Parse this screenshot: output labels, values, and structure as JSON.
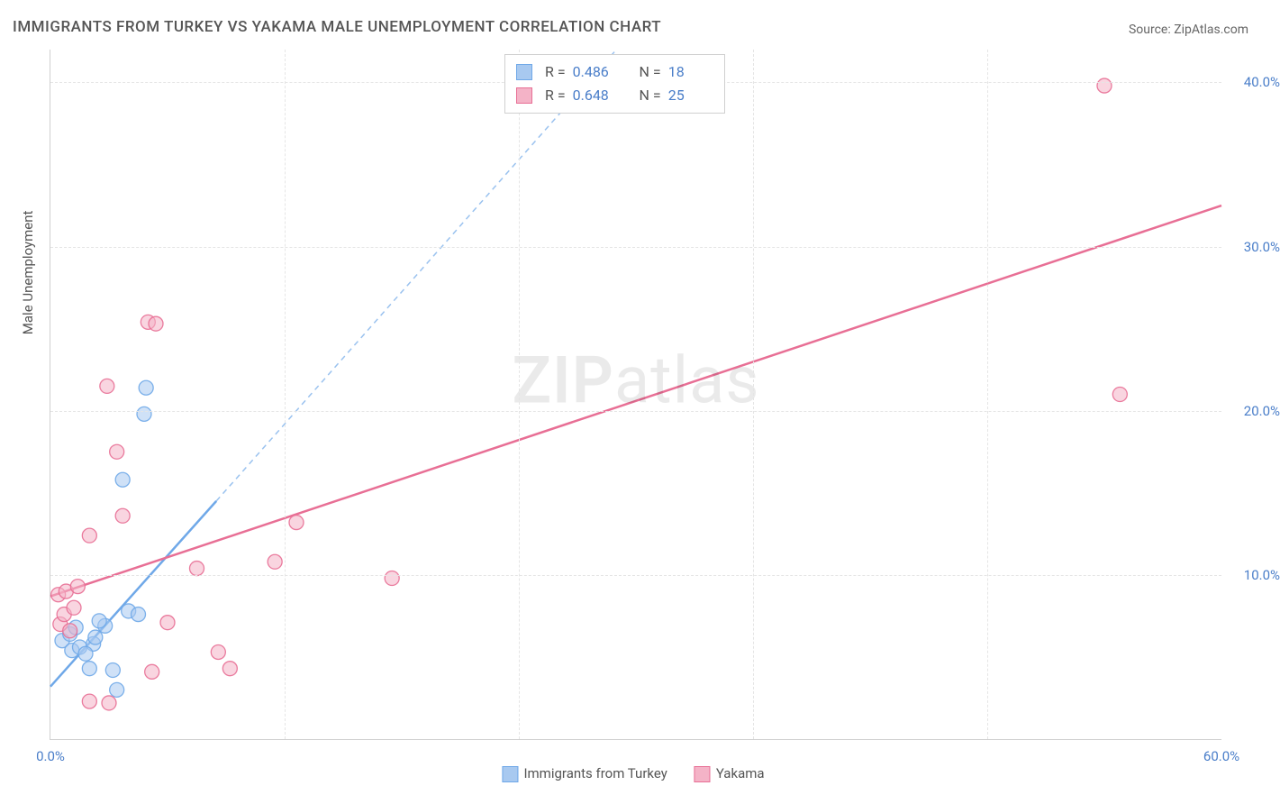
{
  "title": "IMMIGRANTS FROM TURKEY VS YAKAMA MALE UNEMPLOYMENT CORRELATION CHART",
  "source": "Source: ZipAtlas.com",
  "y_axis_label": "Male Unemployment",
  "watermark_bold": "ZIP",
  "watermark_rest": "atlas",
  "chart": {
    "type": "scatter",
    "xlim": [
      0,
      60
    ],
    "ylim": [
      0,
      42
    ],
    "x_ticks": [
      0,
      60
    ],
    "x_tick_labels": [
      "0.0%",
      "60.0%"
    ],
    "y_ticks": [
      10,
      20,
      30,
      40
    ],
    "y_tick_labels": [
      "10.0%",
      "20.0%",
      "30.0%",
      "40.0%"
    ],
    "v_grid_positions": [
      12,
      24,
      36,
      48
    ],
    "background_color": "#ffffff",
    "grid_color": "#e5e5e5",
    "axis_color": "#d0d0d0",
    "tick_label_color": "#4a7ec9",
    "marker_radius": 8,
    "marker_opacity": 0.55,
    "marker_stroke_opacity": 0.9,
    "series": [
      {
        "name": "Immigrants from Turkey",
        "key": "turkey",
        "color": "#6fa8e8",
        "fill": "#a8c9f0",
        "R": "0.486",
        "N": "18",
        "trend": {
          "x1": 0,
          "y1": 3.2,
          "x2": 8.5,
          "y2": 14.5,
          "dash_x2": 29,
          "dash_y2": 42
        },
        "points": [
          [
            0.6,
            6.0
          ],
          [
            1.0,
            6.4
          ],
          [
            1.1,
            5.4
          ],
          [
            1.3,
            6.8
          ],
          [
            1.5,
            5.6
          ],
          [
            2.0,
            4.3
          ],
          [
            2.2,
            5.8
          ],
          [
            2.8,
            6.9
          ],
          [
            2.3,
            6.2
          ],
          [
            3.2,
            4.2
          ],
          [
            3.4,
            3.0
          ],
          [
            4.0,
            7.8
          ],
          [
            4.5,
            7.6
          ],
          [
            2.5,
            7.2
          ],
          [
            3.7,
            15.8
          ],
          [
            4.9,
            21.4
          ],
          [
            4.8,
            19.8
          ],
          [
            1.8,
            5.2
          ]
        ]
      },
      {
        "name": "Yakama",
        "key": "yakama",
        "color": "#e86f95",
        "fill": "#f4b3c7",
        "R": "0.648",
        "N": "25",
        "trend": {
          "x1": 0,
          "y1": 8.7,
          "x2": 60,
          "y2": 32.5
        },
        "points": [
          [
            0.4,
            8.8
          ],
          [
            0.5,
            7.0
          ],
          [
            0.8,
            9.0
          ],
          [
            0.7,
            7.6
          ],
          [
            1.0,
            6.6
          ],
          [
            1.2,
            8.0
          ],
          [
            1.4,
            9.3
          ],
          [
            2.0,
            2.3
          ],
          [
            3.0,
            2.2
          ],
          [
            2.0,
            12.4
          ],
          [
            2.9,
            21.5
          ],
          [
            3.4,
            17.5
          ],
          [
            3.7,
            13.6
          ],
          [
            5.0,
            25.4
          ],
          [
            5.4,
            25.3
          ],
          [
            5.2,
            4.1
          ],
          [
            6.0,
            7.1
          ],
          [
            7.5,
            10.4
          ],
          [
            8.6,
            5.3
          ],
          [
            9.2,
            4.3
          ],
          [
            11.5,
            10.8
          ],
          [
            12.6,
            13.2
          ],
          [
            17.5,
            9.8
          ],
          [
            54.0,
            39.8
          ],
          [
            54.8,
            21.0
          ]
        ]
      }
    ]
  },
  "legend": {
    "items": [
      {
        "label": "Immigrants from Turkey",
        "fill": "#a8c9f0",
        "stroke": "#6fa8e8"
      },
      {
        "label": "Yakama",
        "fill": "#f4b3c7",
        "stroke": "#e86f95"
      }
    ]
  }
}
